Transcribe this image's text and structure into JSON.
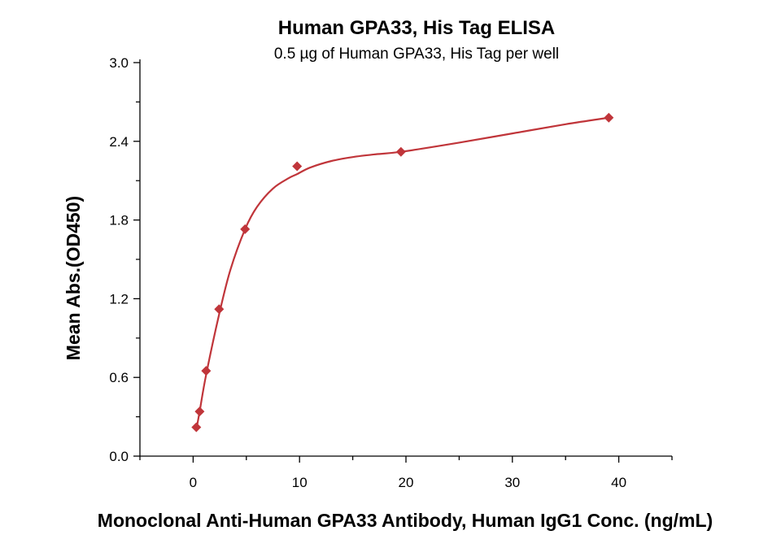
{
  "chart_data": {
    "type": "scatter",
    "title": "Human GPA33, His Tag ELISA",
    "subtitle": "0.5 µg of Human GPA33, His Tag per well",
    "xlabel": "Monoclonal Anti-Human GPA33 Antibody, Human IgG1 Conc. (ng/mL)",
    "ylabel": "Mean Abs.(OD450)",
    "xlim": [
      -5,
      45
    ],
    "ylim": [
      0,
      3.0
    ],
    "x_ticks": [
      0,
      10,
      20,
      30,
      40
    ],
    "x_tick_labels": [
      "0",
      "10",
      "20",
      "30",
      "40"
    ],
    "y_ticks": [
      0,
      0.6,
      1.2,
      1.8,
      2.4,
      3.0
    ],
    "y_tick_labels": [
      "0.0",
      "0.6",
      "1.2",
      "1.8",
      "2.4",
      "3.0"
    ],
    "grid": false,
    "legend": "none",
    "series": [
      {
        "marker": "diamond",
        "color": "#c0353a",
        "x": [
          0.3,
          0.61,
          1.22,
          2.44,
          4.88,
          9.77,
          19.53,
          39.06
        ],
        "y": [
          0.22,
          0.34,
          0.65,
          1.12,
          1.73,
          2.21,
          2.32,
          2.58
        ]
      }
    ],
    "fit_curve": {
      "color": "#c0353a",
      "x": [
        0.3,
        0.61,
        1.22,
        2.44,
        3.5,
        4.88,
        6.0,
        7.5,
        9.0,
        9.77,
        11.0,
        13.0,
        15.0,
        17.0,
        19.53,
        25.0,
        30.0,
        35.0,
        39.06
      ],
      "y": [
        0.2,
        0.34,
        0.62,
        1.08,
        1.42,
        1.73,
        1.9,
        2.04,
        2.12,
        2.15,
        2.2,
        2.25,
        2.28,
        2.3,
        2.32,
        2.39,
        2.46,
        2.53,
        2.58
      ]
    }
  }
}
